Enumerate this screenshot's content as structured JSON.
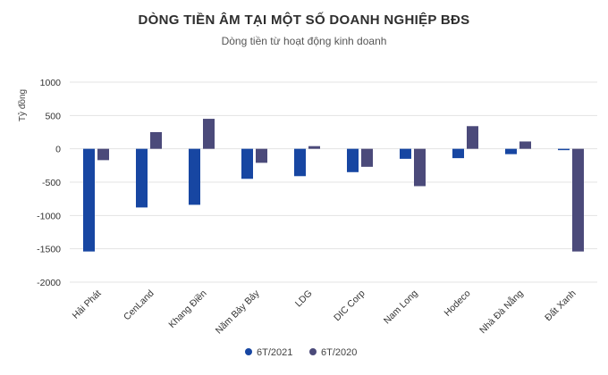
{
  "chart_data": {
    "type": "bar",
    "title": "DÒNG TIỀN ÂM TẠI MỘT SỐ DOANH NGHIỆP BĐS",
    "subtitle": "Dòng tiền từ hoạt động kinh doanh",
    "ylabel": "Tỷ đồng",
    "xlabel": "",
    "ylim": [
      -2000,
      1000
    ],
    "yticks": [
      1000,
      500,
      0,
      -500,
      -1000,
      -1500,
      -2000
    ],
    "ytick_labels": [
      "1000",
      "500",
      "0",
      "-500",
      "-1000",
      "-1500",
      "-2000"
    ],
    "grid": true,
    "legend_position": "bottom",
    "categories": [
      "Hải Phát",
      "CenLand",
      "Khang Điền",
      "Năm Bảy Bảy",
      "LDG",
      "DIC Corp",
      "Nam Long",
      "Hodeco",
      "Nhà Đà Nẵng",
      "Đất Xanh"
    ],
    "series": [
      {
        "name": "6T/2021",
        "color": "#1746a2",
        "values": [
          -1540,
          -880,
          -840,
          -450,
          -410,
          -350,
          -150,
          -140,
          -80,
          -20
        ]
      },
      {
        "name": "6T/2020",
        "color": "#4b4a7a",
        "values": [
          -170,
          250,
          450,
          -210,
          40,
          -270,
          -560,
          340,
          110,
          -1540
        ]
      }
    ]
  }
}
